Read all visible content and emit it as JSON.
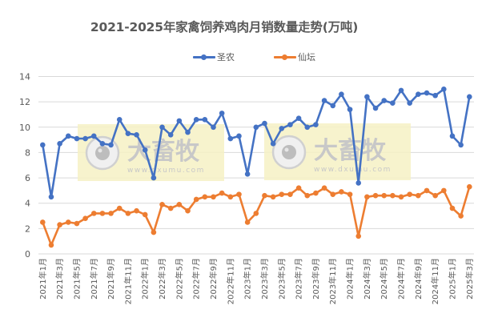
{
  "chart_data": {
    "type": "line",
    "title": "2021-2025年家禽饲养鸡肉月销数量走势(万吨)",
    "xlabel": "",
    "ylabel": "",
    "ylim": [
      0,
      14
    ],
    "yticks": [
      0,
      2,
      4,
      6,
      8,
      10,
      12,
      14
    ],
    "grid": true,
    "legend_position": "top",
    "x_tick_labels_shown": [
      "2021年1月",
      "2021年3月",
      "2021年5月",
      "2021年7月",
      "2021年9月",
      "2021年11月",
      "2022年1月",
      "2022年3月",
      "2022年5月",
      "2022年7月",
      "2022年9月",
      "2022年11月",
      "2023年1月",
      "2023年3月",
      "2023年5月",
      "2023年7月",
      "2023年9月",
      "2023年11月",
      "2024年1月",
      "2024年3月",
      "2024年5月",
      "2024年7月",
      "2024年9月",
      "2024年11月",
      "2025年1月",
      "2025年3月"
    ],
    "categories": [
      "2021年1月",
      "2021年2月",
      "2021年3月",
      "2021年4月",
      "2021年5月",
      "2021年6月",
      "2021年7月",
      "2021年8月",
      "2021年9月",
      "2021年10月",
      "2021年11月",
      "2021年12月",
      "2022年1月",
      "2022年2月",
      "2022年3月",
      "2022年4月",
      "2022年5月",
      "2022年6月",
      "2022年7月",
      "2022年8月",
      "2022年9月",
      "2022年10月",
      "2022年11月",
      "2022年12月",
      "2023年1月",
      "2023年2月",
      "2023年3月",
      "2023年4月",
      "2023年5月",
      "2023年6月",
      "2023年7月",
      "2023年8月",
      "2023年9月",
      "2023年10月",
      "2023年11月",
      "2023年12月",
      "2024年1月",
      "2024年2月",
      "2024年3月",
      "2024年4月",
      "2024年5月",
      "2024年6月",
      "2024年7月",
      "2024年8月",
      "2024年9月",
      "2024年10月",
      "2024年11月",
      "2024年12月",
      "2025年1月",
      "2025年2月",
      "2025年3月"
    ],
    "series": [
      {
        "name": "圣农",
        "color": "#4472C4",
        "values": [
          8.6,
          4.5,
          8.7,
          9.3,
          9.1,
          9.1,
          9.3,
          8.7,
          8.6,
          10.6,
          9.5,
          9.4,
          8.2,
          6.0,
          10.0,
          9.4,
          10.5,
          9.6,
          10.6,
          10.6,
          10.0,
          11.1,
          9.1,
          9.3,
          6.3,
          10.0,
          10.3,
          8.7,
          9.9,
          10.2,
          10.7,
          10.0,
          10.2,
          12.1,
          11.7,
          12.6,
          11.4,
          5.6,
          12.4,
          11.5,
          12.1,
          11.9,
          12.9,
          11.9,
          12.6,
          12.7,
          12.5,
          13.0,
          9.3,
          8.6,
          12.4
        ]
      },
      {
        "name": "仙坛",
        "color": "#ED7D31",
        "values": [
          2.5,
          0.7,
          2.3,
          2.5,
          2.4,
          2.8,
          3.2,
          3.2,
          3.2,
          3.6,
          3.2,
          3.4,
          3.1,
          1.7,
          3.9,
          3.6,
          3.9,
          3.4,
          4.3,
          4.5,
          4.5,
          4.8,
          4.5,
          4.7,
          2.5,
          3.2,
          4.6,
          4.5,
          4.7,
          4.7,
          5.2,
          4.6,
          4.8,
          5.2,
          4.7,
          4.9,
          4.7,
          1.4,
          4.5,
          4.6,
          4.6,
          4.6,
          4.5,
          4.7,
          4.6,
          5.0,
          4.6,
          5.0,
          3.6,
          3.0,
          5.3
        ]
      }
    ]
  },
  "title": "2021-2025年家禽饲养鸡肉月销数量走势(万吨)",
  "legend": [
    {
      "label": "圣农",
      "color": "#4472C4"
    },
    {
      "label": "仙坛",
      "color": "#ED7D31"
    }
  ],
  "watermark": {
    "text": "大畜牧",
    "url": "www.dxumu.com",
    "icon": "camera-lens-logo-icon"
  }
}
